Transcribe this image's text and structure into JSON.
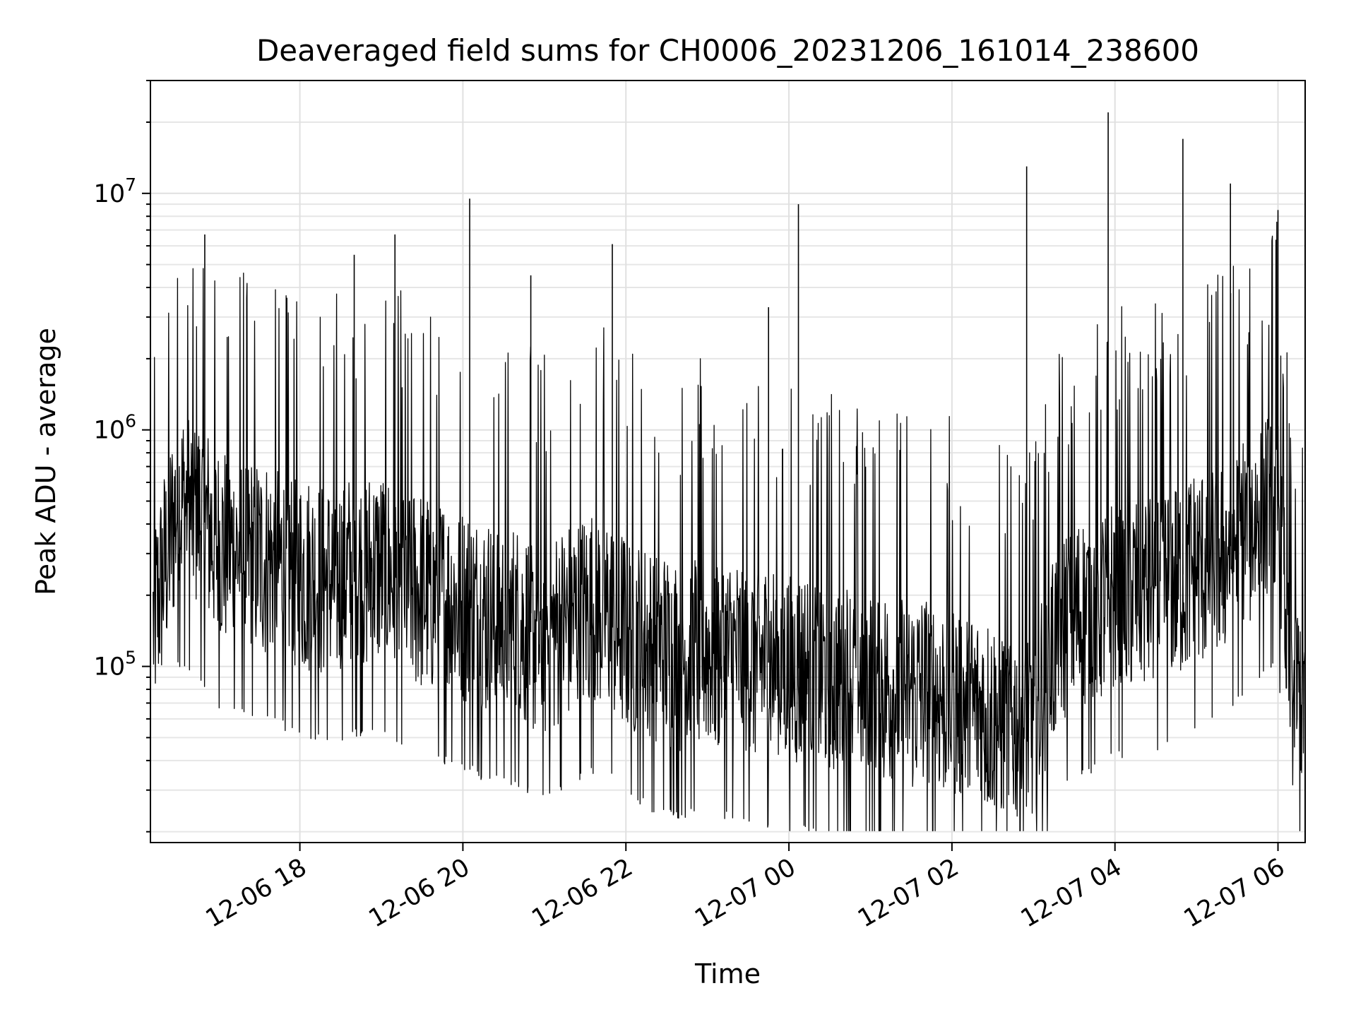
{
  "chart_data": {
    "type": "line",
    "title": "Deaveraged field sums for CH0006_20231206_161014_238600",
    "xlabel": "Time",
    "ylabel": "Peak ADU - average",
    "yscale": "log",
    "ylim": [
      18000,
      30000000
    ],
    "xlim": [
      "2023-12-06 16:10",
      "2023-12-07 06:20"
    ],
    "grid": true,
    "x_ticks": [
      {
        "value": "2023-12-06 18:00",
        "label": "12-06 18"
      },
      {
        "value": "2023-12-06 20:00",
        "label": "12-06 20"
      },
      {
        "value": "2023-12-06 22:00",
        "label": "12-06 22"
      },
      {
        "value": "2023-12-07 00:00",
        "label": "12-07 00"
      },
      {
        "value": "2023-12-07 02:00",
        "label": "12-07 02"
      },
      {
        "value": "2023-12-07 04:00",
        "label": "12-07 04"
      },
      {
        "value": "2023-12-07 06:00",
        "label": "12-07 06"
      }
    ],
    "y_ticks": [
      {
        "value": 100000,
        "base": "10",
        "exp": "5"
      },
      {
        "value": 1000000,
        "base": "10",
        "exp": "6"
      },
      {
        "value": 10000000,
        "base": "10",
        "exp": "7"
      }
    ],
    "series": [
      {
        "color": "#000000",
        "x": [
          "2023-12-06 16:12",
          "2023-12-06 16:30",
          "2023-12-06 16:45",
          "2023-12-06 17:00",
          "2023-12-06 17:20",
          "2023-12-06 17:40",
          "2023-12-06 18:00",
          "2023-12-06 18:20",
          "2023-12-06 18:40",
          "2023-12-06 19:00",
          "2023-12-06 19:20",
          "2023-12-06 19:40",
          "2023-12-06 20:00",
          "2023-12-06 20:20",
          "2023-12-06 20:40",
          "2023-12-06 21:00",
          "2023-12-06 21:20",
          "2023-12-06 21:40",
          "2023-12-06 22:00",
          "2023-12-06 22:20",
          "2023-12-06 22:40",
          "2023-12-06 23:00",
          "2023-12-06 23:20",
          "2023-12-06 23:40",
          "2023-12-07 00:00",
          "2023-12-07 00:20",
          "2023-12-07 00:40",
          "2023-12-07 01:00",
          "2023-12-07 01:20",
          "2023-12-07 01:40",
          "2023-12-07 02:00",
          "2023-12-07 02:20",
          "2023-12-07 02:40",
          "2023-12-07 03:00",
          "2023-12-07 03:20",
          "2023-12-07 03:40",
          "2023-12-07 04:00",
          "2023-12-07 04:20",
          "2023-12-07 04:40",
          "2023-12-07 05:00",
          "2023-12-07 05:20",
          "2023-12-07 05:40",
          "2023-12-07 06:00",
          "2023-12-07 06:10",
          "2023-12-07 06:20"
        ],
        "y": [
          150000,
          500000,
          450000,
          330000,
          300000,
          280000,
          250000,
          230000,
          250000,
          260000,
          220000,
          200000,
          180000,
          160000,
          150000,
          130000,
          160000,
          180000,
          140000,
          120000,
          110000,
          120000,
          110000,
          105000,
          100000,
          95000,
          90000,
          85000,
          80000,
          78000,
          72000,
          65000,
          58000,
          60000,
          150000,
          170000,
          200000,
          210000,
          230000,
          260000,
          300000,
          400000,
          500000,
          75000,
          80000
        ]
      }
    ],
    "spikes": [
      {
        "x": "2023-12-06 16:50",
        "y": 6700000
      },
      {
        "x": "2023-12-06 18:40",
        "y": 5500000
      },
      {
        "x": "2023-12-06 19:10",
        "y": 6700000
      },
      {
        "x": "2023-12-06 20:05",
        "y": 9500000
      },
      {
        "x": "2023-12-06 20:50",
        "y": 4500000
      },
      {
        "x": "2023-12-06 21:50",
        "y": 6100000
      },
      {
        "x": "2023-12-06 23:45",
        "y": 3300000
      },
      {
        "x": "2023-12-07 00:07",
        "y": 9000000
      },
      {
        "x": "2023-12-07 02:55",
        "y": 13000000
      },
      {
        "x": "2023-12-07 03:55",
        "y": 22000000
      },
      {
        "x": "2023-12-07 04:50",
        "y": 17000000
      },
      {
        "x": "2023-12-07 05:25",
        "y": 11000000
      },
      {
        "x": "2023-12-07 06:00",
        "y": 8500000
      }
    ]
  }
}
